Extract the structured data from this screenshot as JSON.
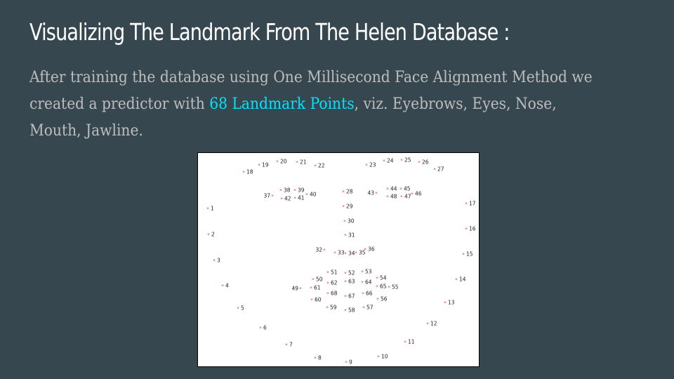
{
  "slide": {
    "title": "Visualizing The Landmark From The Helen Database :",
    "body_before": "After training the database using One Millisecond Face Alignment Method we created a predictor with ",
    "body_highlight": "68 Landmark Points",
    "body_after": ", viz. Eyebrows, Eyes, Nose, Mouth, Jawline.",
    "colors": {
      "background": "#37474f",
      "title": "#ffffff",
      "body": "#bdbdbd",
      "highlight": "#00e5ff",
      "marker": "#e53935"
    }
  },
  "figure": {
    "marker_glyph": "*",
    "landmarks": [
      {
        "id": "1"
      },
      {
        "id": "2"
      },
      {
        "id": "3"
      },
      {
        "id": "4"
      },
      {
        "id": "5"
      },
      {
        "id": "6"
      },
      {
        "id": "7"
      },
      {
        "id": "8"
      },
      {
        "id": "9"
      },
      {
        "id": "10"
      },
      {
        "id": "11"
      },
      {
        "id": "12"
      },
      {
        "id": "13"
      },
      {
        "id": "14"
      },
      {
        "id": "15"
      },
      {
        "id": "16"
      },
      {
        "id": "17"
      },
      {
        "id": "18"
      },
      {
        "id": "19"
      },
      {
        "id": "20"
      },
      {
        "id": "21"
      },
      {
        "id": "22"
      },
      {
        "id": "23"
      },
      {
        "id": "24"
      },
      {
        "id": "25"
      },
      {
        "id": "26"
      },
      {
        "id": "27"
      },
      {
        "id": "28"
      },
      {
        "id": "29"
      },
      {
        "id": "30"
      },
      {
        "id": "31"
      },
      {
        "id": "32"
      },
      {
        "id": "33"
      },
      {
        "id": "34"
      },
      {
        "id": "35"
      },
      {
        "id": "36"
      },
      {
        "id": "37"
      },
      {
        "id": "38"
      },
      {
        "id": "39"
      },
      {
        "id": "40"
      },
      {
        "id": "41"
      },
      {
        "id": "42"
      },
      {
        "id": "43"
      },
      {
        "id": "44"
      },
      {
        "id": "45"
      },
      {
        "id": "46"
      },
      {
        "id": "47"
      },
      {
        "id": "48"
      },
      {
        "id": "49"
      },
      {
        "id": "50"
      },
      {
        "id": "51"
      },
      {
        "id": "52"
      },
      {
        "id": "53"
      },
      {
        "id": "54"
      },
      {
        "id": "55"
      },
      {
        "id": "56"
      },
      {
        "id": "57"
      },
      {
        "id": "58"
      },
      {
        "id": "59"
      },
      {
        "id": "60"
      },
      {
        "id": "61"
      },
      {
        "id": "62"
      },
      {
        "id": "63"
      },
      {
        "id": "64"
      },
      {
        "id": "65"
      },
      {
        "id": "66"
      },
      {
        "id": "67"
      },
      {
        "id": "68"
      }
    ]
  }
}
